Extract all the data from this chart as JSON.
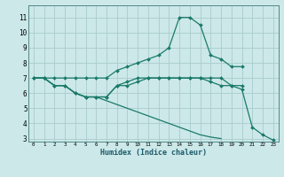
{
  "xlabel": "Humidex (Indice chaleur)",
  "ylabel": "",
  "xlim": [
    -0.5,
    23.5
  ],
  "ylim": [
    2.8,
    11.8
  ],
  "yticks": [
    3,
    4,
    5,
    6,
    7,
    8,
    9,
    10,
    11
  ],
  "xticks": [
    0,
    1,
    2,
    3,
    4,
    5,
    6,
    7,
    8,
    9,
    10,
    11,
    12,
    13,
    14,
    15,
    16,
    17,
    18,
    19,
    20,
    21,
    22,
    23
  ],
  "bg_color": "#cce8e8",
  "grid_color": "#aacccc",
  "line_color": "#1a7a6a",
  "series": [
    {
      "x": [
        0,
        1,
        2,
        3,
        4,
        5,
        6,
        7,
        8,
        9,
        10,
        11,
        12,
        13,
        14,
        15,
        16,
        17,
        18,
        19,
        20
      ],
      "y": [
        7.0,
        7.0,
        7.0,
        7.0,
        7.0,
        7.0,
        7.0,
        7.0,
        7.5,
        7.75,
        8.0,
        8.25,
        8.5,
        9.0,
        11.0,
        11.0,
        10.5,
        8.5,
        8.25,
        7.75,
        7.75
      ],
      "marker": true
    },
    {
      "x": [
        0,
        1,
        2,
        3,
        4,
        5,
        6,
        7,
        8,
        9,
        10,
        11,
        12,
        13,
        14,
        15,
        16,
        17,
        18,
        19,
        20
      ],
      "y": [
        7.0,
        7.0,
        6.5,
        6.5,
        6.0,
        5.75,
        5.75,
        5.75,
        6.5,
        6.75,
        7.0,
        7.0,
        7.0,
        7.0,
        7.0,
        7.0,
        7.0,
        7.0,
        7.0,
        6.5,
        6.5
      ],
      "marker": true
    },
    {
      "x": [
        0,
        1,
        2,
        3,
        4,
        5,
        6,
        7,
        8,
        9,
        10,
        11,
        12,
        13,
        14,
        15,
        16,
        17,
        18
      ],
      "y": [
        7.0,
        7.0,
        6.5,
        6.5,
        6.0,
        5.75,
        5.75,
        5.5,
        5.25,
        5.0,
        4.75,
        4.5,
        4.25,
        4.0,
        3.75,
        3.5,
        3.25,
        3.1,
        3.0
      ],
      "marker": false
    },
    {
      "x": [
        0,
        1,
        2,
        3,
        4,
        5,
        6,
        7,
        8,
        9,
        10,
        11,
        12,
        13,
        14,
        15,
        16,
        17,
        18,
        19,
        20,
        21,
        22,
        23
      ],
      "y": [
        7.0,
        7.0,
        6.5,
        6.5,
        6.0,
        5.75,
        5.75,
        5.75,
        6.5,
        6.5,
        6.75,
        7.0,
        7.0,
        7.0,
        7.0,
        7.0,
        7.0,
        6.75,
        6.5,
        6.5,
        6.25,
        3.75,
        3.25,
        2.9
      ],
      "marker": true
    }
  ]
}
